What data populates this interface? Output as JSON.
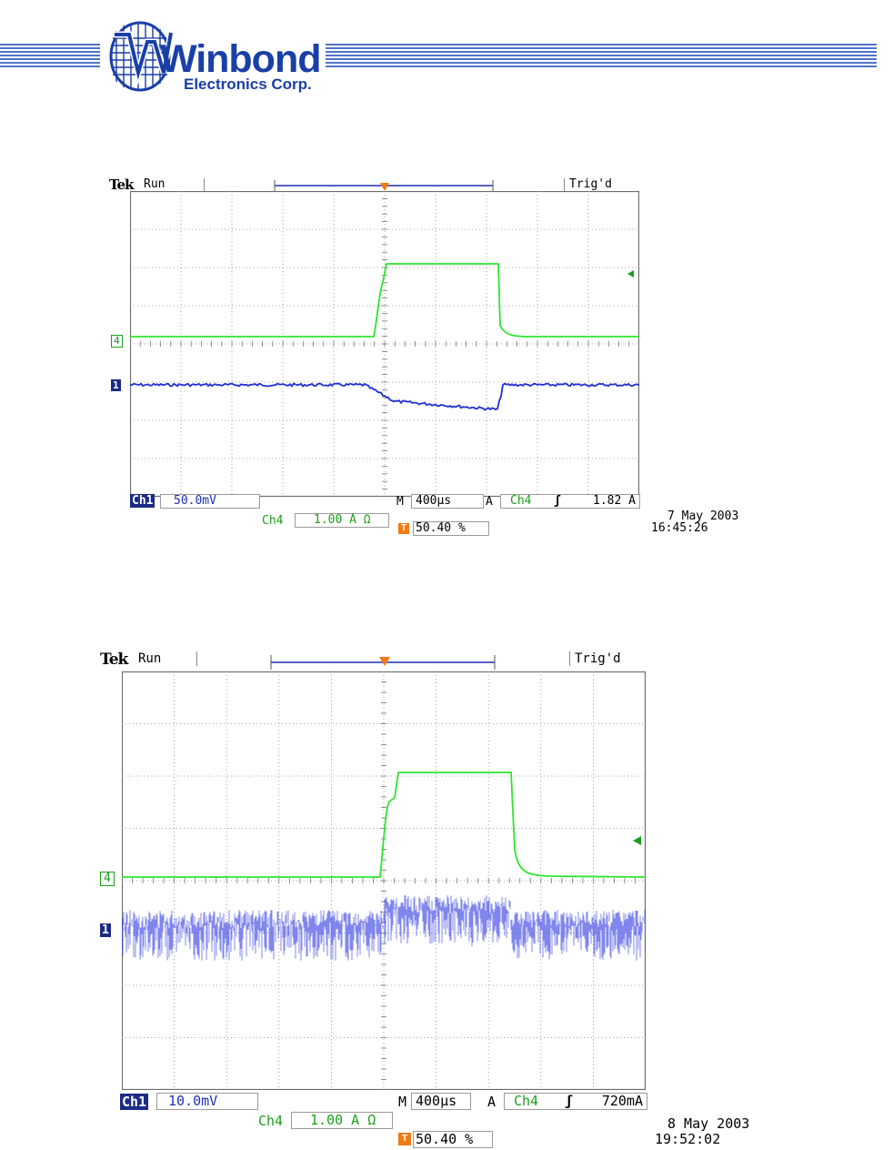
{
  "header": {
    "logo_text": "Winbond",
    "logo_sub": "Electronics Corp."
  },
  "scope1": {
    "brand": "Tek",
    "run_status": "Run",
    "trig_status": "Trig'd",
    "ch1_label": "Ch1",
    "ch1_scale": "50.0mV",
    "ch4_label": "Ch4",
    "ch4_scale": "1.00 A Ω",
    "timebase_prefix": "M",
    "timebase": "400µs",
    "trigger_mode": "A",
    "trigger_source": "Ch4",
    "trigger_slope": "ʃ",
    "trigger_level": "1.82 A",
    "trigger_position": "50.40 %",
    "date": "7 May 2003",
    "time": "16:45:26",
    "ch1_marker": "1",
    "ch4_marker": "4",
    "trigger_marker": "T",
    "colors": {
      "ch1": "#1f2fd6",
      "ch4": "#2ee62e",
      "trigger": "#f07b12",
      "grid": "#8a8a8a"
    }
  },
  "scope2": {
    "brand": "Tek",
    "run_status": "Run",
    "trig_status": "Trig'd",
    "ch1_label": "Ch1",
    "ch1_scale": "10.0mV",
    "ch4_label": "Ch4",
    "ch4_scale": "1.00 A Ω",
    "timebase_prefix": "M",
    "timebase": "400µs",
    "trigger_mode": "A",
    "trigger_source": "Ch4",
    "trigger_slope": "ʃ",
    "trigger_level": "720mA",
    "trigger_position": "50.40 %",
    "date": "8 May 2003",
    "time": "19:52:02",
    "ch1_marker": "1",
    "ch4_marker": "4",
    "trigger_marker": "T",
    "colors": {
      "ch1": "#2a35e0",
      "ch4": "#2ee62e",
      "trigger": "#f07b12",
      "grid": "#8a8a8a"
    }
  }
}
